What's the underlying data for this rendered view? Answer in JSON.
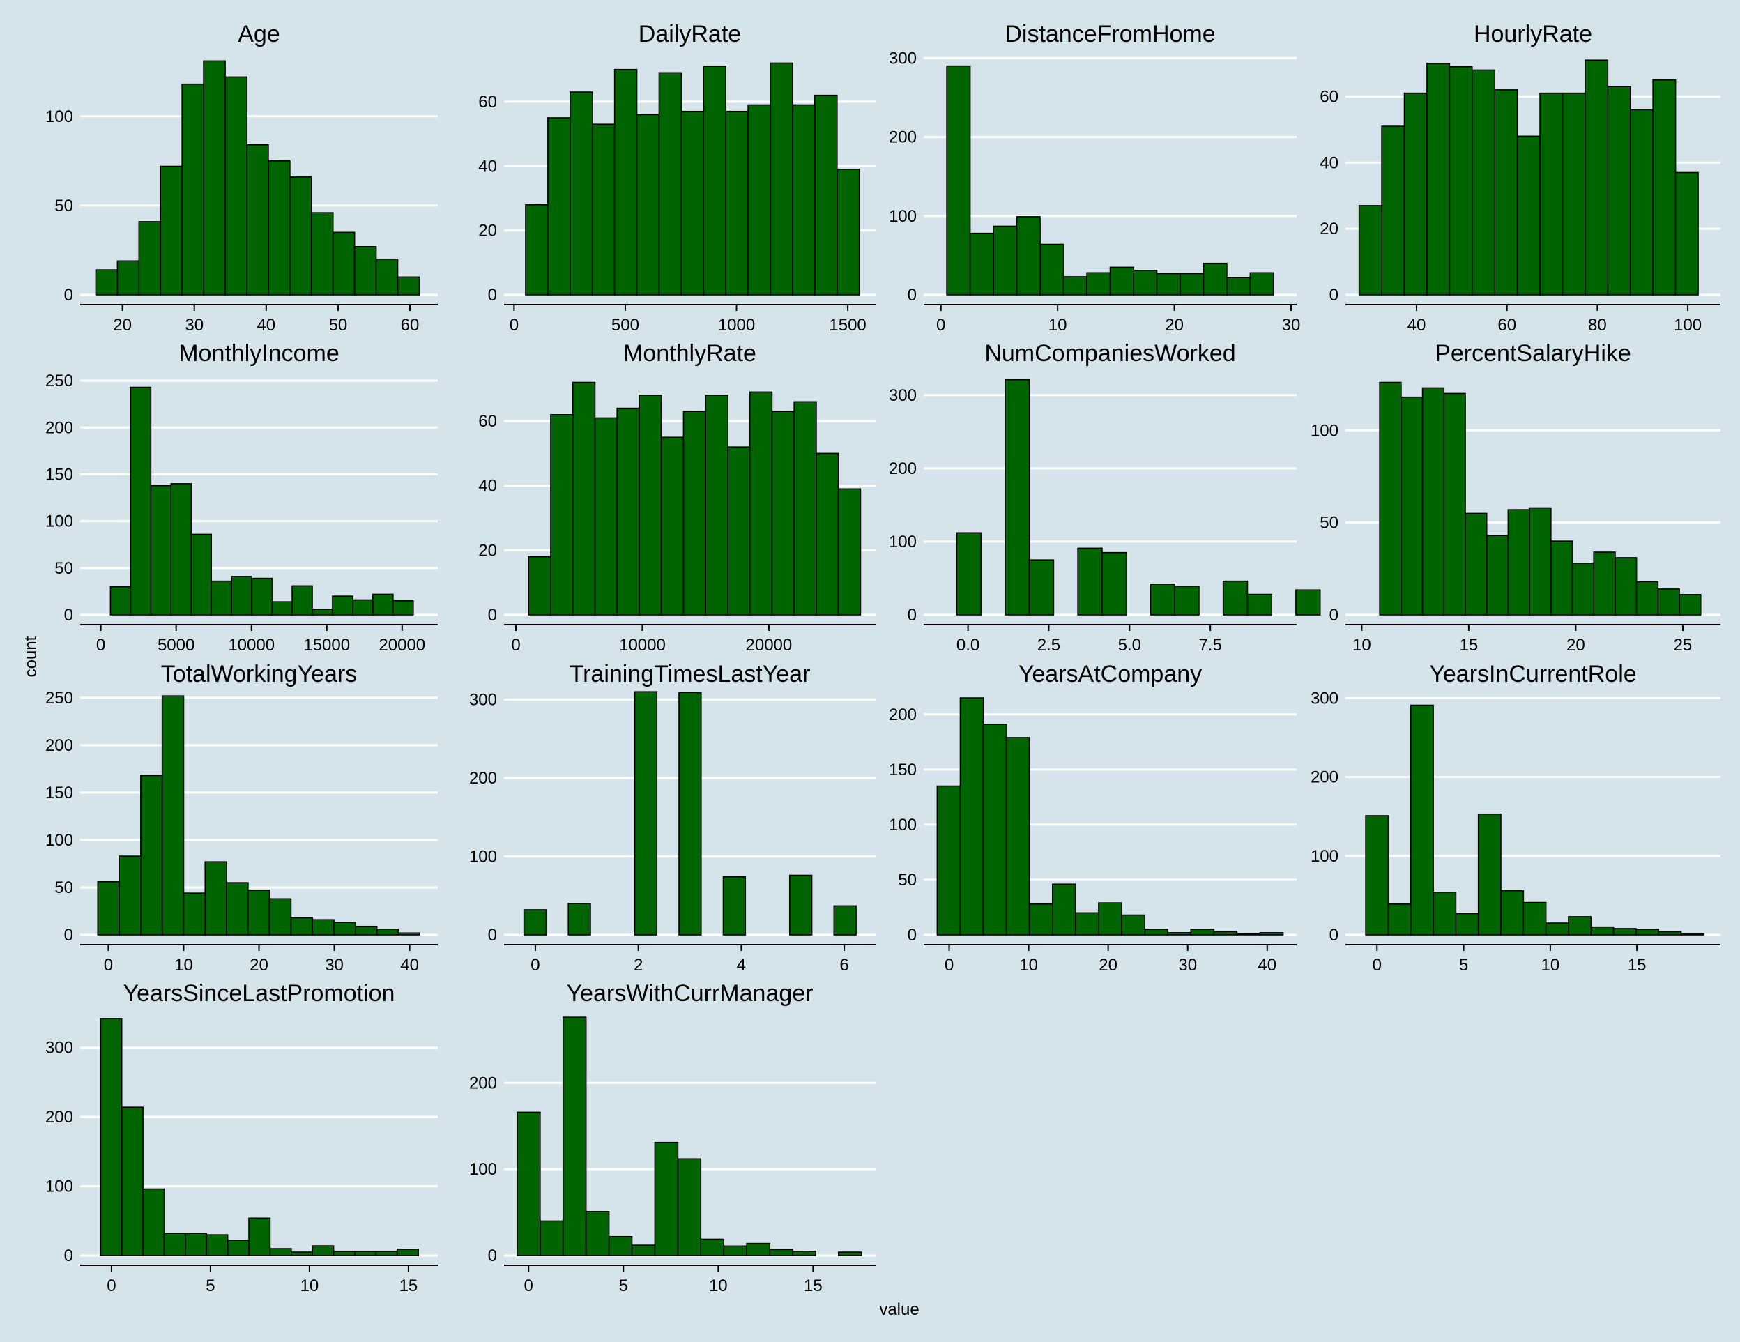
{
  "figure": {
    "xlabel": "value",
    "ylabel": "count",
    "colors": {
      "background": "#d5e4eb",
      "bar_fill": "#006400",
      "bar_stroke": "#000000",
      "grid": "#ffffff"
    }
  },
  "chart_data": [
    {
      "type": "bar",
      "title": "Age",
      "xlim": [
        14.9,
        63.1
      ],
      "ylim": [
        0,
        137
      ],
      "xticks": [
        20,
        30,
        40,
        50,
        60
      ],
      "xticklabels": [
        "20",
        "30",
        "40",
        "50",
        "60"
      ],
      "yticks": [
        0,
        50,
        100
      ],
      "yticklabels": [
        "0",
        "50",
        "100"
      ],
      "bin_start": 16.3,
      "bin_width": 3.0,
      "values": [
        14,
        19,
        41,
        72,
        118,
        131,
        122,
        84,
        75,
        66,
        46,
        35,
        27,
        20,
        10
      ]
    },
    {
      "type": "bar",
      "title": "DailyRate",
      "xlim": [
        -20,
        1600
      ],
      "ylim": [
        0,
        76
      ],
      "xticks": [
        0,
        500,
        1000,
        1500
      ],
      "xticklabels": [
        "0",
        "500",
        "1000",
        "1500"
      ],
      "yticks": [
        0,
        20,
        40,
        60
      ],
      "yticklabels": [
        "0",
        "20",
        "40",
        "60"
      ],
      "bin_start": 52,
      "bin_width": 100,
      "values": [
        28,
        55,
        63,
        53,
        70,
        56,
        69,
        57,
        71,
        57,
        59,
        72,
        59,
        62,
        39
      ]
    },
    {
      "type": "bar",
      "title": "DistanceFromHome",
      "xlim": [
        -1,
        30
      ],
      "ylim": [
        0,
        310
      ],
      "xticks": [
        0,
        10,
        20,
        30
      ],
      "xticklabels": [
        "0",
        "10",
        "20",
        "30"
      ],
      "yticks": [
        0,
        100,
        200,
        300
      ],
      "yticklabels": [
        "0",
        "100",
        "200",
        "300"
      ],
      "bin_start": 0.5,
      "bin_width": 2,
      "values": [
        290,
        78,
        87,
        99,
        64,
        23,
        28,
        35,
        31,
        27,
        27,
        40,
        22,
        28
      ]
    },
    {
      "type": "bar",
      "title": "HourlyRate",
      "xlim": [
        25.5,
        106
      ],
      "ylim": [
        0,
        74
      ],
      "xticks": [
        40,
        60,
        80,
        100
      ],
      "xticklabels": [
        "40",
        "60",
        "80",
        "100"
      ],
      "yticks": [
        0,
        20,
        40,
        60
      ],
      "yticklabels": [
        "0",
        "20",
        "40",
        "60"
      ],
      "bin_start": 27.3,
      "bin_width": 5,
      "values": [
        27,
        51,
        61,
        70,
        69,
        68,
        62,
        48,
        61,
        61,
        71,
        63,
        56,
        65,
        37
      ]
    },
    {
      "type": "bar",
      "title": "MonthlyIncome",
      "xlim": [
        -1000,
        22000
      ],
      "ylim": [
        0,
        262
      ],
      "xticks": [
        0,
        5000,
        10000,
        15000,
        20000
      ],
      "xticklabels": [
        "0",
        "5000",
        "10000",
        "15000",
        "20000"
      ],
      "yticks": [
        0,
        50,
        100,
        150,
        200,
        250
      ],
      "yticklabels": [
        "0",
        "50",
        "100",
        "150",
        "200",
        "250"
      ],
      "bin_start": 640,
      "bin_width": 1340,
      "values": [
        30,
        243,
        138,
        140,
        86,
        36,
        41,
        39,
        14,
        31,
        6,
        20,
        16,
        22,
        15
      ]
    },
    {
      "type": "bar",
      "title": "MonthlyRate",
      "xlim": [
        -500,
        28000
      ],
      "ylim": [
        0,
        76
      ],
      "xticks": [
        0,
        10000,
        20000
      ],
      "xticklabels": [
        "0",
        "10000",
        "20000"
      ],
      "yticks": [
        0,
        20,
        40,
        60
      ],
      "yticklabels": [
        "0",
        "20",
        "40",
        "60"
      ],
      "bin_start": 1000,
      "bin_width": 1750,
      "values": [
        18,
        62,
        72,
        61,
        64,
        68,
        55,
        63,
        68,
        52,
        69,
        63,
        66,
        50,
        39
      ]
    },
    {
      "type": "bar",
      "title": "NumCompaniesWorked",
      "xlim": [
        -1.2,
        10
      ],
      "ylim": [
        0,
        335
      ],
      "xticks": [
        0,
        2.5,
        5,
        7.5
      ],
      "xticklabels": [
        "0.0",
        "2.5",
        "5.0",
        "7.5"
      ],
      "yticks": [
        0,
        100,
        200,
        300
      ],
      "yticklabels": [
        "0",
        "100",
        "200",
        "300"
      ],
      "bin_start": -0.35,
      "bin_width": 0.75,
      "values": [
        112,
        0,
        321,
        75,
        0,
        91,
        85,
        0,
        42,
        39,
        0,
        46,
        28,
        0,
        34
      ]
    },
    {
      "type": "bar",
      "title": "PercentSalaryHike",
      "xlim": [
        9.5,
        26.5
      ],
      "ylim": [
        0,
        133
      ],
      "xticks": [
        10,
        15,
        20,
        25
      ],
      "xticklabels": [
        "10",
        "15",
        "20",
        "25"
      ],
      "yticks": [
        0,
        50,
        100
      ],
      "yticklabels": [
        "0",
        "50",
        "100"
      ],
      "bin_start": 10.84,
      "bin_width": 1.0,
      "values": [
        126,
        118,
        123,
        120,
        55,
        43,
        57,
        58,
        40,
        28,
        34,
        31,
        18,
        14,
        11
      ]
    },
    {
      "type": "bar",
      "title": "TotalWorkingYears",
      "xlim": [
        -3,
        43
      ],
      "ylim": [
        0,
        258
      ],
      "xticks": [
        0,
        10,
        20,
        30,
        40
      ],
      "xticklabels": [
        "0",
        "10",
        "20",
        "30",
        "40"
      ],
      "yticks": [
        0,
        50,
        100,
        150,
        200,
        250
      ],
      "yticklabels": [
        "0",
        "50",
        "100",
        "150",
        "200",
        "250"
      ],
      "bin_start": -1.4,
      "bin_width": 2.85,
      "values": [
        56,
        83,
        168,
        252,
        44,
        77,
        55,
        47,
        38,
        18,
        16,
        13,
        9,
        6,
        2
      ]
    },
    {
      "type": "bar",
      "title": "TrainingTimesLastYear",
      "xlim": [
        -0.5,
        6.5
      ],
      "ylim": [
        0,
        312
      ],
      "xticks": [
        0,
        2,
        4,
        6
      ],
      "xticklabels": [
        "0",
        "2",
        "4",
        "6"
      ],
      "yticks": [
        0,
        100,
        200,
        300
      ],
      "yticklabels": [
        "0",
        "100",
        "200",
        "300"
      ],
      "bin_start": -0.22,
      "bin_width": 0.43,
      "values": [
        32,
        0,
        40,
        0,
        0,
        310,
        0,
        309,
        0,
        74,
        0,
        0,
        76,
        0,
        37
      ]
    },
    {
      "type": "bar",
      "title": "YearsAtCompany",
      "xlim": [
        -2.5,
        43
      ],
      "ylim": [
        0,
        222
      ],
      "xticks": [
        0,
        10,
        20,
        30,
        40
      ],
      "xticklabels": [
        "0",
        "10",
        "20",
        "30",
        "40"
      ],
      "yticks": [
        0,
        50,
        100,
        150,
        200
      ],
      "yticklabels": [
        "0",
        "50",
        "100",
        "150",
        "200"
      ],
      "bin_start": -1.5,
      "bin_width": 2.9,
      "values": [
        135,
        215,
        191,
        179,
        28,
        46,
        20,
        29,
        18,
        5,
        2,
        5,
        3,
        1,
        2
      ]
    },
    {
      "type": "bar",
      "title": "YearsInCurrentRole",
      "xlim": [
        -1.5,
        19.5
      ],
      "ylim": [
        0,
        310
      ],
      "xticks": [
        0,
        5,
        10,
        15
      ],
      "xticklabels": [
        "0",
        "5",
        "10",
        "15"
      ],
      "yticks": [
        0,
        100,
        200,
        300
      ],
      "yticklabels": [
        "0",
        "100",
        "200",
        "300"
      ],
      "bin_start": -0.65,
      "bin_width": 1.3,
      "values": [
        151,
        39,
        291,
        54,
        27,
        153,
        56,
        41,
        15,
        23,
        10,
        8,
        7,
        4,
        1
      ]
    },
    {
      "type": "bar",
      "title": "YearsSinceLastPromotion",
      "xlim": [
        -1.3,
        16.2
      ],
      "ylim": [
        0,
        355
      ],
      "xticks": [
        0,
        5,
        10,
        15
      ],
      "xticklabels": [
        "0",
        "5",
        "10",
        "15"
      ],
      "yticks": [
        0,
        100,
        200,
        300
      ],
      "yticklabels": [
        "0",
        "100",
        "200",
        "300"
      ],
      "bin_start": -0.55,
      "bin_width": 1.07,
      "values": [
        342,
        214,
        96,
        32,
        32,
        30,
        22,
        54,
        10,
        5,
        14,
        6,
        6,
        6,
        9
      ]
    },
    {
      "type": "bar",
      "title": "YearsWithCurrManager",
      "xlim": [
        -1,
        18
      ],
      "ylim": [
        0,
        285
      ],
      "xticks": [
        0,
        5,
        10,
        15
      ],
      "xticklabels": [
        "0",
        "5",
        "10",
        "15"
      ],
      "yticks": [
        0,
        100,
        200
      ],
      "yticklabels": [
        "0",
        "100",
        "200"
      ],
      "bin_start": -0.6,
      "bin_width": 1.21,
      "values": [
        166,
        40,
        276,
        51,
        22,
        12,
        131,
        112,
        19,
        11,
        14,
        7,
        5,
        0,
        4
      ]
    }
  ]
}
